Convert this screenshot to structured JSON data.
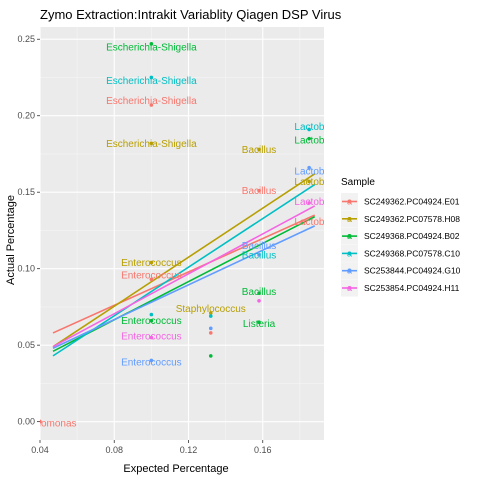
{
  "chart_data": {
    "type": "scatter",
    "title": "Zymo Extraction:Intrakit Variablity Qiagen DSP Virus",
    "xlabel": "Expected Percentage",
    "ylabel": "Actual Percentage",
    "xlim": [
      0.04,
      0.193
    ],
    "ylim": [
      -0.012,
      0.258
    ],
    "x_ticks": [
      0.04,
      0.08,
      0.12,
      0.16
    ],
    "x_tick_labels": [
      "0.04",
      "0.08",
      "0.12",
      "0.16"
    ],
    "y_ticks": [
      0.0,
      0.05,
      0.1,
      0.15,
      0.2,
      0.25
    ],
    "y_tick_labels": [
      "0.00",
      "0.05",
      "0.10",
      "0.15",
      "0.20",
      "0.25"
    ],
    "grid": true,
    "legend": {
      "title": "Sample",
      "position": "right",
      "glyph": "a"
    },
    "series": [
      {
        "name": "SC249362.PC04924.E01",
        "color": "#F8766D",
        "points": [
          [
            0.1,
            0.207
          ],
          [
            0.158,
            0.151
          ],
          [
            0.132,
            0.058
          ],
          [
            0.1,
            0.093
          ],
          [
            0.04,
            0.0
          ]
        ],
        "labels": [
          {
            "text": "Escherichia-Shigella",
            "x": 0.1,
            "y": 0.21
          },
          {
            "text": "Bacillus",
            "x": 0.158,
            "y": 0.151
          },
          {
            "text": "Enterococcus",
            "x": 0.1,
            "y": 0.096
          },
          {
            "text": "idomonas",
            "x": 0.048,
            "y": -0.001
          }
        ],
        "fit": {
          "x": [
            0.047,
            0.188
          ],
          "y": [
            0.058,
            0.135
          ]
        }
      },
      {
        "name": "SC249362.PC07578.H08",
        "color": "#B79F00",
        "points": [
          [
            0.1,
            0.182
          ],
          [
            0.158,
            0.178
          ],
          [
            0.185,
            0.157
          ],
          [
            0.132,
            0.071
          ],
          [
            0.1,
            0.104
          ]
        ],
        "labels": [
          {
            "text": "Escherichia-Shigella",
            "x": 0.1,
            "y": 0.182
          },
          {
            "text": "Bacillus",
            "x": 0.158,
            "y": 0.178
          },
          {
            "text": "Lactobac",
            "x": 0.188,
            "y": 0.157
          },
          {
            "text": "Staphylococcus",
            "x": 0.132,
            "y": 0.074
          },
          {
            "text": "Enterococcus",
            "x": 0.1,
            "y": 0.104
          }
        ],
        "fit": {
          "x": [
            0.047,
            0.188
          ],
          "y": [
            0.049,
            0.162
          ]
        }
      },
      {
        "name": "SC249368.PC04924.B02",
        "color": "#00BA38",
        "points": [
          [
            0.1,
            0.247
          ],
          [
            0.185,
            0.185
          ],
          [
            0.158,
            0.084
          ],
          [
            0.158,
            0.065
          ],
          [
            0.132,
            0.043
          ],
          [
            0.1,
            0.066
          ]
        ],
        "labels": [
          {
            "text": "Escherichia-Shigella",
            "x": 0.1,
            "y": 0.245
          },
          {
            "text": "Lactobac",
            "x": 0.188,
            "y": 0.184
          },
          {
            "text": "Bacillus",
            "x": 0.158,
            "y": 0.085
          },
          {
            "text": "Listeria",
            "x": 0.158,
            "y": 0.064
          },
          {
            "text": "Enterococcus",
            "x": 0.1,
            "y": 0.066
          }
        ],
        "fit": {
          "x": [
            0.047,
            0.188
          ],
          "y": [
            0.046,
            0.134
          ]
        }
      },
      {
        "name": "SC249368.PC07578.C10",
        "color": "#00BFC4",
        "points": [
          [
            0.1,
            0.225
          ],
          [
            0.185,
            0.191
          ],
          [
            0.132,
            0.069
          ],
          [
            0.1,
            0.07
          ]
        ],
        "labels": [
          {
            "text": "Escherichia-Shigella",
            "x": 0.1,
            "y": 0.223
          },
          {
            "text": "Lactobac",
            "x": 0.188,
            "y": 0.193
          },
          {
            "text": "Bacillus",
            "x": 0.158,
            "y": 0.109
          }
        ],
        "fit": {
          "x": [
            0.047,
            0.188
          ],
          "y": [
            0.043,
            0.155
          ]
        }
      },
      {
        "name": "SC253844.PC04924.G10",
        "color": "#619CFF",
        "points": [
          [
            0.185,
            0.166
          ],
          [
            0.158,
            0.109
          ],
          [
            0.132,
            0.061
          ],
          [
            0.1,
            0.04
          ]
        ],
        "labels": [
          {
            "text": "Lactobac",
            "x": 0.188,
            "y": 0.164
          },
          {
            "text": "Bacillus",
            "x": 0.158,
            "y": 0.115
          },
          {
            "text": "Enterococcus",
            "x": 0.1,
            "y": 0.039
          }
        ],
        "fit": {
          "x": [
            0.047,
            0.188
          ],
          "y": [
            0.048,
            0.128
          ]
        }
      },
      {
        "name": "SC253854.PC04924.H11",
        "color": "#F564E3",
        "points": [
          [
            0.185,
            0.143
          ],
          [
            0.158,
            0.079
          ],
          [
            0.1,
            0.055
          ]
        ],
        "labels": [
          {
            "text": "Lactobac",
            "x": 0.188,
            "y": 0.144
          },
          {
            "text": "Enterococcus",
            "x": 0.1,
            "y": 0.056
          }
        ],
        "fit": {
          "x": [
            0.047,
            0.188
          ],
          "y": [
            0.049,
            0.141
          ]
        }
      }
    ],
    "extra_labels": [
      {
        "text": "Lactobac",
        "x": 0.188,
        "y": 0.131,
        "color": "#F8766D"
      }
    ]
  }
}
